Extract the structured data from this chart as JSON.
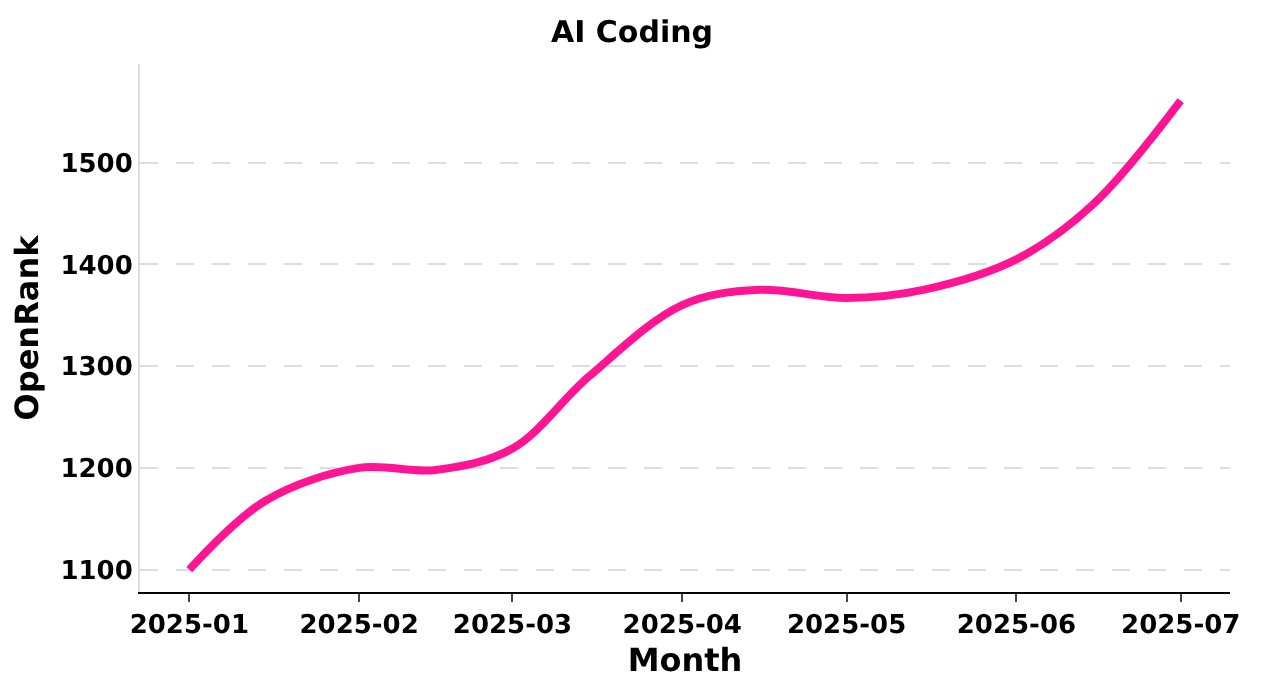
{
  "chart_data": {
    "type": "line",
    "title": "AI Coding",
    "xlabel": "Month",
    "ylabel": "OpenRank",
    "x": [
      "2025-01-01",
      "2025-01-15",
      "2025-02-01",
      "2025-02-15",
      "2025-03-01",
      "2025-03-15",
      "2025-04-01",
      "2025-04-15",
      "2025-05-01",
      "2025-05-15",
      "2025-06-01",
      "2025-06-15",
      "2025-07-01"
    ],
    "series": [
      {
        "color": "#ff1493",
        "values": [
          1100,
          1168,
          1200,
          1198,
          1219,
          1290,
          1360,
          1375,
          1367,
          1375,
          1405,
          1459,
          1561
        ]
      }
    ],
    "xlim": [
      "2024-12-23",
      "2025-07-10"
    ],
    "xticks": [
      "2025-01",
      "2025-02",
      "2025-03",
      "2025-04",
      "2025-05",
      "2025-06",
      "2025-07"
    ],
    "ylim": [
      1078,
      1597
    ],
    "yticks": [
      1100,
      1200,
      1300,
      1400,
      1500
    ],
    "grid": "y",
    "line_style": "solid",
    "marker": "none"
  }
}
